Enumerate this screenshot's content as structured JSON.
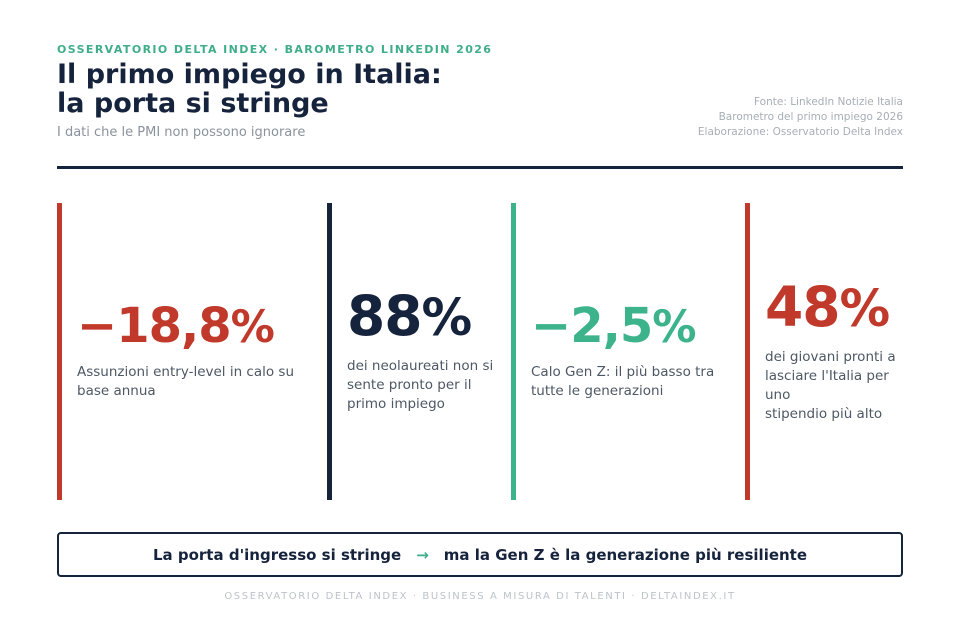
{
  "header": {
    "kicker": "OSSERVATORIO DELTA INDEX · BAROMETRO LINKEDIN 2026",
    "title": "Il primo impiego in Italia:\nla porta si stringe",
    "subtitle": "I dati che le PMI non possono ignorare",
    "source": "Fonte: LinkedIn Notizie Italia\nBarometro del primo impiego 2026\nElaborazione: Osservatorio Delta Index"
  },
  "stats": [
    {
      "number": "−18,8",
      "pct": "%",
      "label": "Assunzioni entry-level in calo su\nbase annua",
      "accent_color": "#c0392b"
    },
    {
      "number": "88",
      "pct": "%",
      "label": "dei neolaureati non si\nsente pronto per il\nprimo impiego",
      "accent_color": "#16233c"
    },
    {
      "number": "−2,5",
      "pct": "%",
      "label": "Calo Gen Z: il più basso tra\ntutte le generazioni",
      "accent_color": "#3cb38a"
    },
    {
      "number": "48",
      "pct": "%",
      "label": "dei giovani pronti a\nlasciare l'Italia per uno\nstipendio più alto",
      "accent_color": "#c0392b"
    }
  ],
  "banner": {
    "left": "La porta d'ingresso si stringe",
    "arrow": "→",
    "right": "ma la Gen Z è la generazione più resiliente"
  },
  "footer": {
    "text": "OSSERVATORIO DELTA INDEX · BUSINESS A MISURA DI TALENTI · DELTAINDEX.IT"
  },
  "colors": {
    "red": "#c0392b",
    "navy": "#16233c",
    "teal": "#3cb38a",
    "kicker_green": "#3fae87",
    "label_gray": "#4d5864",
    "source_gray": "#a7aeb6",
    "footer_gray": "#bcc3c9"
  },
  "chart_data": {
    "type": "table",
    "title": "Il primo impiego in Italia: la porta si stringe",
    "subtitle": "I dati che le PMI non possono ignorare",
    "stats": [
      {
        "value": -18.8,
        "unit": "%",
        "display": "−18,8%",
        "label": "Assunzioni entry-level in calo su base annua",
        "color": "#c0392b"
      },
      {
        "value": 88,
        "unit": "%",
        "display": "88%",
        "label": "dei neolaureati non si sente pronto per il primo impiego",
        "color": "#16233c"
      },
      {
        "value": -2.5,
        "unit": "%",
        "display": "−2,5%",
        "label": "Calo Gen Z: il più basso tra tutte le generazioni",
        "color": "#3cb38a"
      },
      {
        "value": 48,
        "unit": "%",
        "display": "48%",
        "label": "dei giovani pronti a lasciare l'Italia per uno stipendio più alto",
        "color": "#c0392b"
      }
    ]
  }
}
